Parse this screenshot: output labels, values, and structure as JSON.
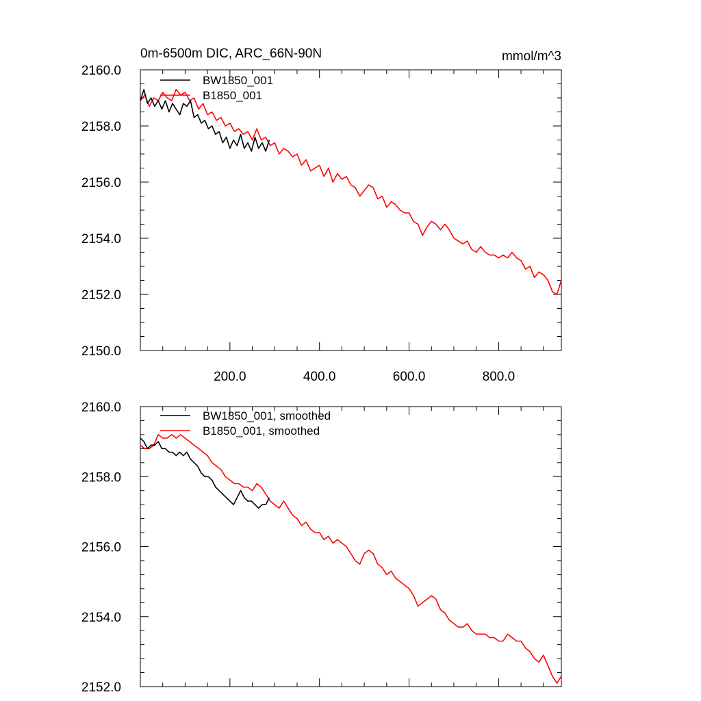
{
  "chart_data": [
    {
      "type": "line",
      "title": "0m-6500m DIC, ARC_66N-90N",
      "units": "mmol/m^3",
      "xlim": [
        0,
        940
      ],
      "ylim": [
        2150,
        2160
      ],
      "xticks": [
        200,
        400,
        600,
        800
      ],
      "xtick_labels": [
        "200.0",
        "400.0",
        "600.0",
        "800.0"
      ],
      "yticks": [
        2150,
        2152,
        2154,
        2156,
        2158,
        2160
      ],
      "ytick_labels": [
        "2150.0",
        "2152.0",
        "2154.0",
        "2156.0",
        "2158.0",
        "2160.0"
      ],
      "legend": [
        "BW1850_001",
        "B1850_001"
      ],
      "legend_position": "top-left",
      "series": [
        {
          "name": "BW1850_001",
          "color": "#000000",
          "x": [
            0,
            8,
            16,
            24,
            32,
            40,
            48,
            56,
            64,
            72,
            80,
            88,
            96,
            104,
            112,
            120,
            128,
            136,
            144,
            152,
            160,
            168,
            176,
            184,
            192,
            200,
            208,
            216,
            224,
            232,
            240,
            248,
            256,
            264,
            272,
            280,
            288
          ],
          "values": [
            2158.9,
            2159.3,
            2158.8,
            2159.0,
            2158.7,
            2158.9,
            2158.6,
            2158.9,
            2158.5,
            2158.8,
            2158.6,
            2158.4,
            2158.8,
            2158.7,
            2158.9,
            2158.3,
            2158.4,
            2158.1,
            2158.2,
            2157.9,
            2158.0,
            2157.7,
            2157.8,
            2157.4,
            2157.6,
            2157.2,
            2157.5,
            2157.3,
            2157.7,
            2157.2,
            2157.4,
            2157.1,
            2157.6,
            2157.2,
            2157.4,
            2157.1,
            2157.5
          ]
        },
        {
          "name": "B1850_001",
          "color": "#ff0000",
          "x": [
            0,
            10,
            20,
            30,
            40,
            50,
            60,
            70,
            80,
            90,
            100,
            110,
            120,
            130,
            140,
            150,
            160,
            170,
            180,
            190,
            200,
            210,
            220,
            230,
            240,
            250,
            260,
            270,
            280,
            290,
            300,
            310,
            320,
            330,
            340,
            350,
            360,
            370,
            380,
            390,
            400,
            410,
            420,
            430,
            440,
            450,
            460,
            470,
            480,
            490,
            500,
            510,
            520,
            530,
            540,
            550,
            560,
            570,
            580,
            590,
            600,
            610,
            620,
            630,
            640,
            650,
            660,
            670,
            680,
            690,
            700,
            710,
            720,
            730,
            740,
            750,
            760,
            770,
            780,
            790,
            800,
            810,
            820,
            830,
            840,
            850,
            860,
            870,
            880,
            890,
            900,
            910,
            920,
            930,
            940
          ],
          "values": [
            2158.9,
            2159.1,
            2158.7,
            2159.0,
            2158.9,
            2159.2,
            2159.0,
            2158.9,
            2159.3,
            2159.1,
            2159.2,
            2158.9,
            2159.0,
            2158.6,
            2158.8,
            2158.4,
            2158.5,
            2158.2,
            2158.3,
            2158.0,
            2158.1,
            2157.8,
            2157.9,
            2157.7,
            2157.8,
            2157.5,
            2157.9,
            2157.5,
            2157.6,
            2157.3,
            2157.4,
            2157.0,
            2157.2,
            2157.1,
            2156.9,
            2157.0,
            2156.6,
            2156.8,
            2156.4,
            2156.5,
            2156.6,
            2156.2,
            2156.5,
            2156.0,
            2156.3,
            2156.1,
            2156.2,
            2155.9,
            2155.8,
            2155.5,
            2155.7,
            2155.9,
            2155.8,
            2155.4,
            2155.5,
            2155.1,
            2155.3,
            2155.2,
            2155.0,
            2154.9,
            2154.9,
            2154.6,
            2154.5,
            2154.1,
            2154.4,
            2154.6,
            2154.5,
            2154.3,
            2154.5,
            2154.3,
            2154.0,
            2153.9,
            2153.8,
            2153.9,
            2153.6,
            2153.5,
            2153.7,
            2153.5,
            2153.4,
            2153.4,
            2153.3,
            2153.4,
            2153.3,
            2153.5,
            2153.3,
            2153.2,
            2152.9,
            2153.0,
            2152.6,
            2152.8,
            2152.7,
            2152.5,
            2152.1,
            2152.0,
            2152.5
          ]
        }
      ]
    },
    {
      "type": "line",
      "title": "",
      "xlim": [
        0,
        940
      ],
      "ylim": [
        2152,
        2160
      ],
      "xticks": [
        200,
        400,
        600,
        800
      ],
      "yticks": [
        2152,
        2154,
        2156,
        2158,
        2160
      ],
      "ytick_labels": [
        "2152.0",
        "2154.0",
        "2156.0",
        "2158.0",
        "2160.0"
      ],
      "legend": [
        "BW1850_001, smoothed",
        "B1850_001, smoothed"
      ],
      "legend_position": "top-left",
      "series": [
        {
          "name": "BW1850_001, smoothed",
          "color": "#000000",
          "x": [
            0,
            8,
            16,
            24,
            32,
            40,
            48,
            56,
            64,
            72,
            80,
            88,
            96,
            104,
            112,
            120,
            128,
            136,
            144,
            152,
            160,
            168,
            176,
            184,
            192,
            200,
            208,
            216,
            224,
            232,
            240,
            248,
            256,
            264,
            272,
            280,
            288
          ],
          "values": [
            2159.1,
            2159.0,
            2158.8,
            2158.9,
            2158.9,
            2159.0,
            2158.8,
            2158.8,
            2158.7,
            2158.7,
            2158.6,
            2158.7,
            2158.6,
            2158.7,
            2158.5,
            2158.4,
            2158.3,
            2158.1,
            2158.0,
            2158.0,
            2157.9,
            2157.7,
            2157.6,
            2157.5,
            2157.4,
            2157.3,
            2157.2,
            2157.4,
            2157.6,
            2157.4,
            2157.3,
            2157.3,
            2157.2,
            2157.1,
            2157.2,
            2157.2,
            2157.4
          ]
        },
        {
          "name": "B1850_001, smoothed",
          "color": "#ff0000",
          "x": [
            0,
            10,
            20,
            30,
            40,
            50,
            60,
            70,
            80,
            90,
            100,
            110,
            120,
            130,
            140,
            150,
            160,
            170,
            180,
            190,
            200,
            210,
            220,
            230,
            240,
            250,
            260,
            270,
            280,
            290,
            300,
            310,
            320,
            330,
            340,
            350,
            360,
            370,
            380,
            390,
            400,
            410,
            420,
            430,
            440,
            450,
            460,
            470,
            480,
            490,
            500,
            510,
            520,
            530,
            540,
            550,
            560,
            570,
            580,
            590,
            600,
            610,
            620,
            630,
            640,
            650,
            660,
            670,
            680,
            690,
            700,
            710,
            720,
            730,
            740,
            750,
            760,
            770,
            780,
            790,
            800,
            810,
            820,
            830,
            840,
            850,
            860,
            870,
            880,
            890,
            900,
            910,
            920,
            930,
            940
          ],
          "values": [
            2158.9,
            2158.8,
            2158.8,
            2158.9,
            2159.2,
            2159.1,
            2159.1,
            2159.2,
            2159.1,
            2159.2,
            2159.1,
            2159.0,
            2158.9,
            2158.8,
            2158.7,
            2158.6,
            2158.4,
            2158.3,
            2158.2,
            2158.0,
            2157.9,
            2157.8,
            2157.8,
            2157.7,
            2157.7,
            2157.6,
            2157.8,
            2157.7,
            2157.5,
            2157.3,
            2157.2,
            2157.1,
            2157.3,
            2157.1,
            2156.9,
            2156.8,
            2156.6,
            2156.7,
            2156.5,
            2156.4,
            2156.4,
            2156.2,
            2156.3,
            2156.1,
            2156.2,
            2156.1,
            2156.0,
            2155.8,
            2155.6,
            2155.5,
            2155.8,
            2155.9,
            2155.8,
            2155.5,
            2155.4,
            2155.2,
            2155.3,
            2155.1,
            2155.0,
            2154.9,
            2154.8,
            2154.6,
            2154.3,
            2154.4,
            2154.5,
            2154.6,
            2154.5,
            2154.2,
            2154.1,
            2153.9,
            2153.8,
            2153.7,
            2153.7,
            2153.8,
            2153.6,
            2153.5,
            2153.5,
            2153.5,
            2153.4,
            2153.4,
            2153.3,
            2153.3,
            2153.5,
            2153.4,
            2153.3,
            2153.3,
            2153.1,
            2153.0,
            2152.8,
            2152.7,
            2152.9,
            2152.6,
            2152.3,
            2152.1,
            2152.3
          ]
        }
      ]
    }
  ]
}
